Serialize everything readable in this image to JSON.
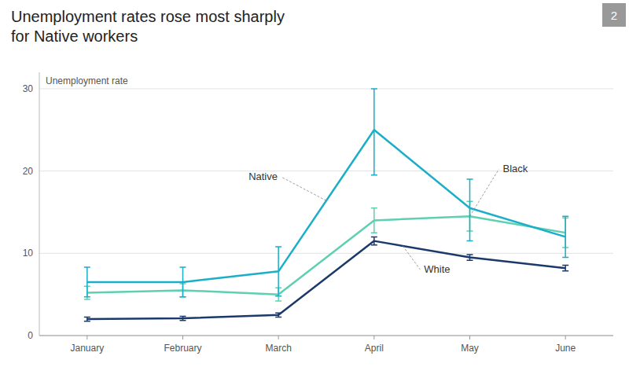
{
  "chart_data": {
    "type": "line",
    "title": "Unemployment rates rose most sharply\nfor Native workers",
    "y_label": "Unemployment rate",
    "annotations": [
      "2"
    ],
    "categories": [
      "January",
      "February",
      "March",
      "April",
      "May",
      "June"
    ],
    "series": [
      {
        "name": "White",
        "color": "#1B3A6B",
        "values": [
          2.0,
          2.1,
          2.5,
          11.5,
          9.5,
          8.2
        ],
        "error_low": [
          0.25,
          0.25,
          0.25,
          0.5,
          0.35,
          0.35
        ],
        "error_high": [
          0.25,
          0.25,
          0.25,
          0.5,
          0.35,
          0.35
        ]
      },
      {
        "name": "Black",
        "color": "#5ECFB1",
        "values": [
          5.2,
          5.5,
          5.0,
          14.0,
          14.5,
          12.5
        ],
        "error_low": [
          0.8,
          0.8,
          0.8,
          1.5,
          1.8,
          1.8
        ],
        "error_high": [
          0.8,
          0.8,
          0.8,
          1.5,
          1.8,
          1.8
        ]
      },
      {
        "name": "Native",
        "color": "#1AAEC8",
        "values": [
          6.5,
          6.5,
          7.8,
          25.0,
          15.5,
          12.0
        ],
        "error_low": [
          1.8,
          1.8,
          3.0,
          5.5,
          4.0,
          2.5
        ],
        "error_high": [
          1.8,
          1.8,
          3.0,
          5.0,
          3.5,
          2.5
        ]
      }
    ],
    "ylim": [
      0,
      32
    ],
    "yticks": [
      0,
      10,
      20,
      30
    ],
    "grid": true
  }
}
